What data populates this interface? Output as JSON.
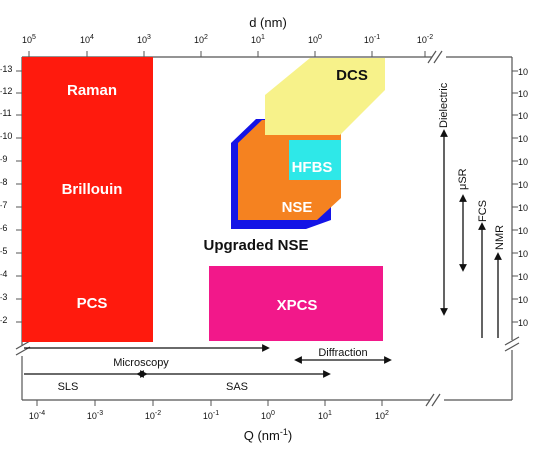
{
  "top_axis": {
    "title": "d (nm)",
    "ticks": [
      {
        "base": "10",
        "exp": "5"
      },
      {
        "base": "10",
        "exp": "4"
      },
      {
        "base": "10",
        "exp": "3"
      },
      {
        "base": "10",
        "exp": "2"
      },
      {
        "base": "10",
        "exp": "1"
      },
      {
        "base": "10",
        "exp": "0"
      },
      {
        "base": "10",
        "exp": "-1"
      },
      {
        "base": "10",
        "exp": "-2"
      }
    ]
  },
  "bottom_axis": {
    "title_main": "Q (nm",
    "title_exp": "-1",
    "title_close": ")",
    "ticks": [
      {
        "base": "10",
        "exp": "-4"
      },
      {
        "base": "10",
        "exp": "-3"
      },
      {
        "base": "10",
        "exp": "-2"
      },
      {
        "base": "10",
        "exp": "-1"
      },
      {
        "base": "10",
        "exp": "0"
      },
      {
        "base": "10",
        "exp": "1"
      },
      {
        "base": "10",
        "exp": "2"
      }
    ]
  },
  "left_axis": {
    "ticks": [
      {
        "exp": "13"
      },
      {
        "exp": "12"
      },
      {
        "exp": "11"
      },
      {
        "exp": "10"
      },
      {
        "exp": "9"
      },
      {
        "exp": "8"
      },
      {
        "exp": "7"
      },
      {
        "exp": "6"
      },
      {
        "exp": "5"
      },
      {
        "exp": "4"
      },
      {
        "exp": "3"
      },
      {
        "exp": "2"
      }
    ]
  },
  "right_axis": {
    "ticks": [
      {
        "base": "10"
      },
      {
        "base": "10"
      },
      {
        "base": "10"
      },
      {
        "base": "10"
      },
      {
        "base": "10"
      },
      {
        "base": "10"
      },
      {
        "base": "10"
      },
      {
        "base": "10"
      },
      {
        "base": "10"
      },
      {
        "base": "10"
      },
      {
        "base": "10"
      },
      {
        "base": "10"
      }
    ]
  },
  "regions": {
    "raman": "Raman",
    "brillouin": "Brillouin",
    "pcs": "PCS",
    "dcs": "DCS",
    "hfbs": "HFBS",
    "nse": "NSE",
    "upgraded_nse": "Upgraded NSE",
    "xpcs": "XPCS"
  },
  "vertical_methods": {
    "dielectric": "Dielectric",
    "musr": "μSR",
    "fcs": "FCS",
    "nmr": "NMR"
  },
  "horizontal_methods": {
    "microscopy": "Microscopy",
    "diffraction": "Diffraction",
    "sls": "SLS",
    "sas": "SAS"
  },
  "colors": {
    "red": "#ff1a0d",
    "pink": "#f2188a",
    "yellow": "#f7f28a",
    "orange": "#f58220",
    "cyan": "#2ee8e8",
    "blue": "#1414e6"
  }
}
